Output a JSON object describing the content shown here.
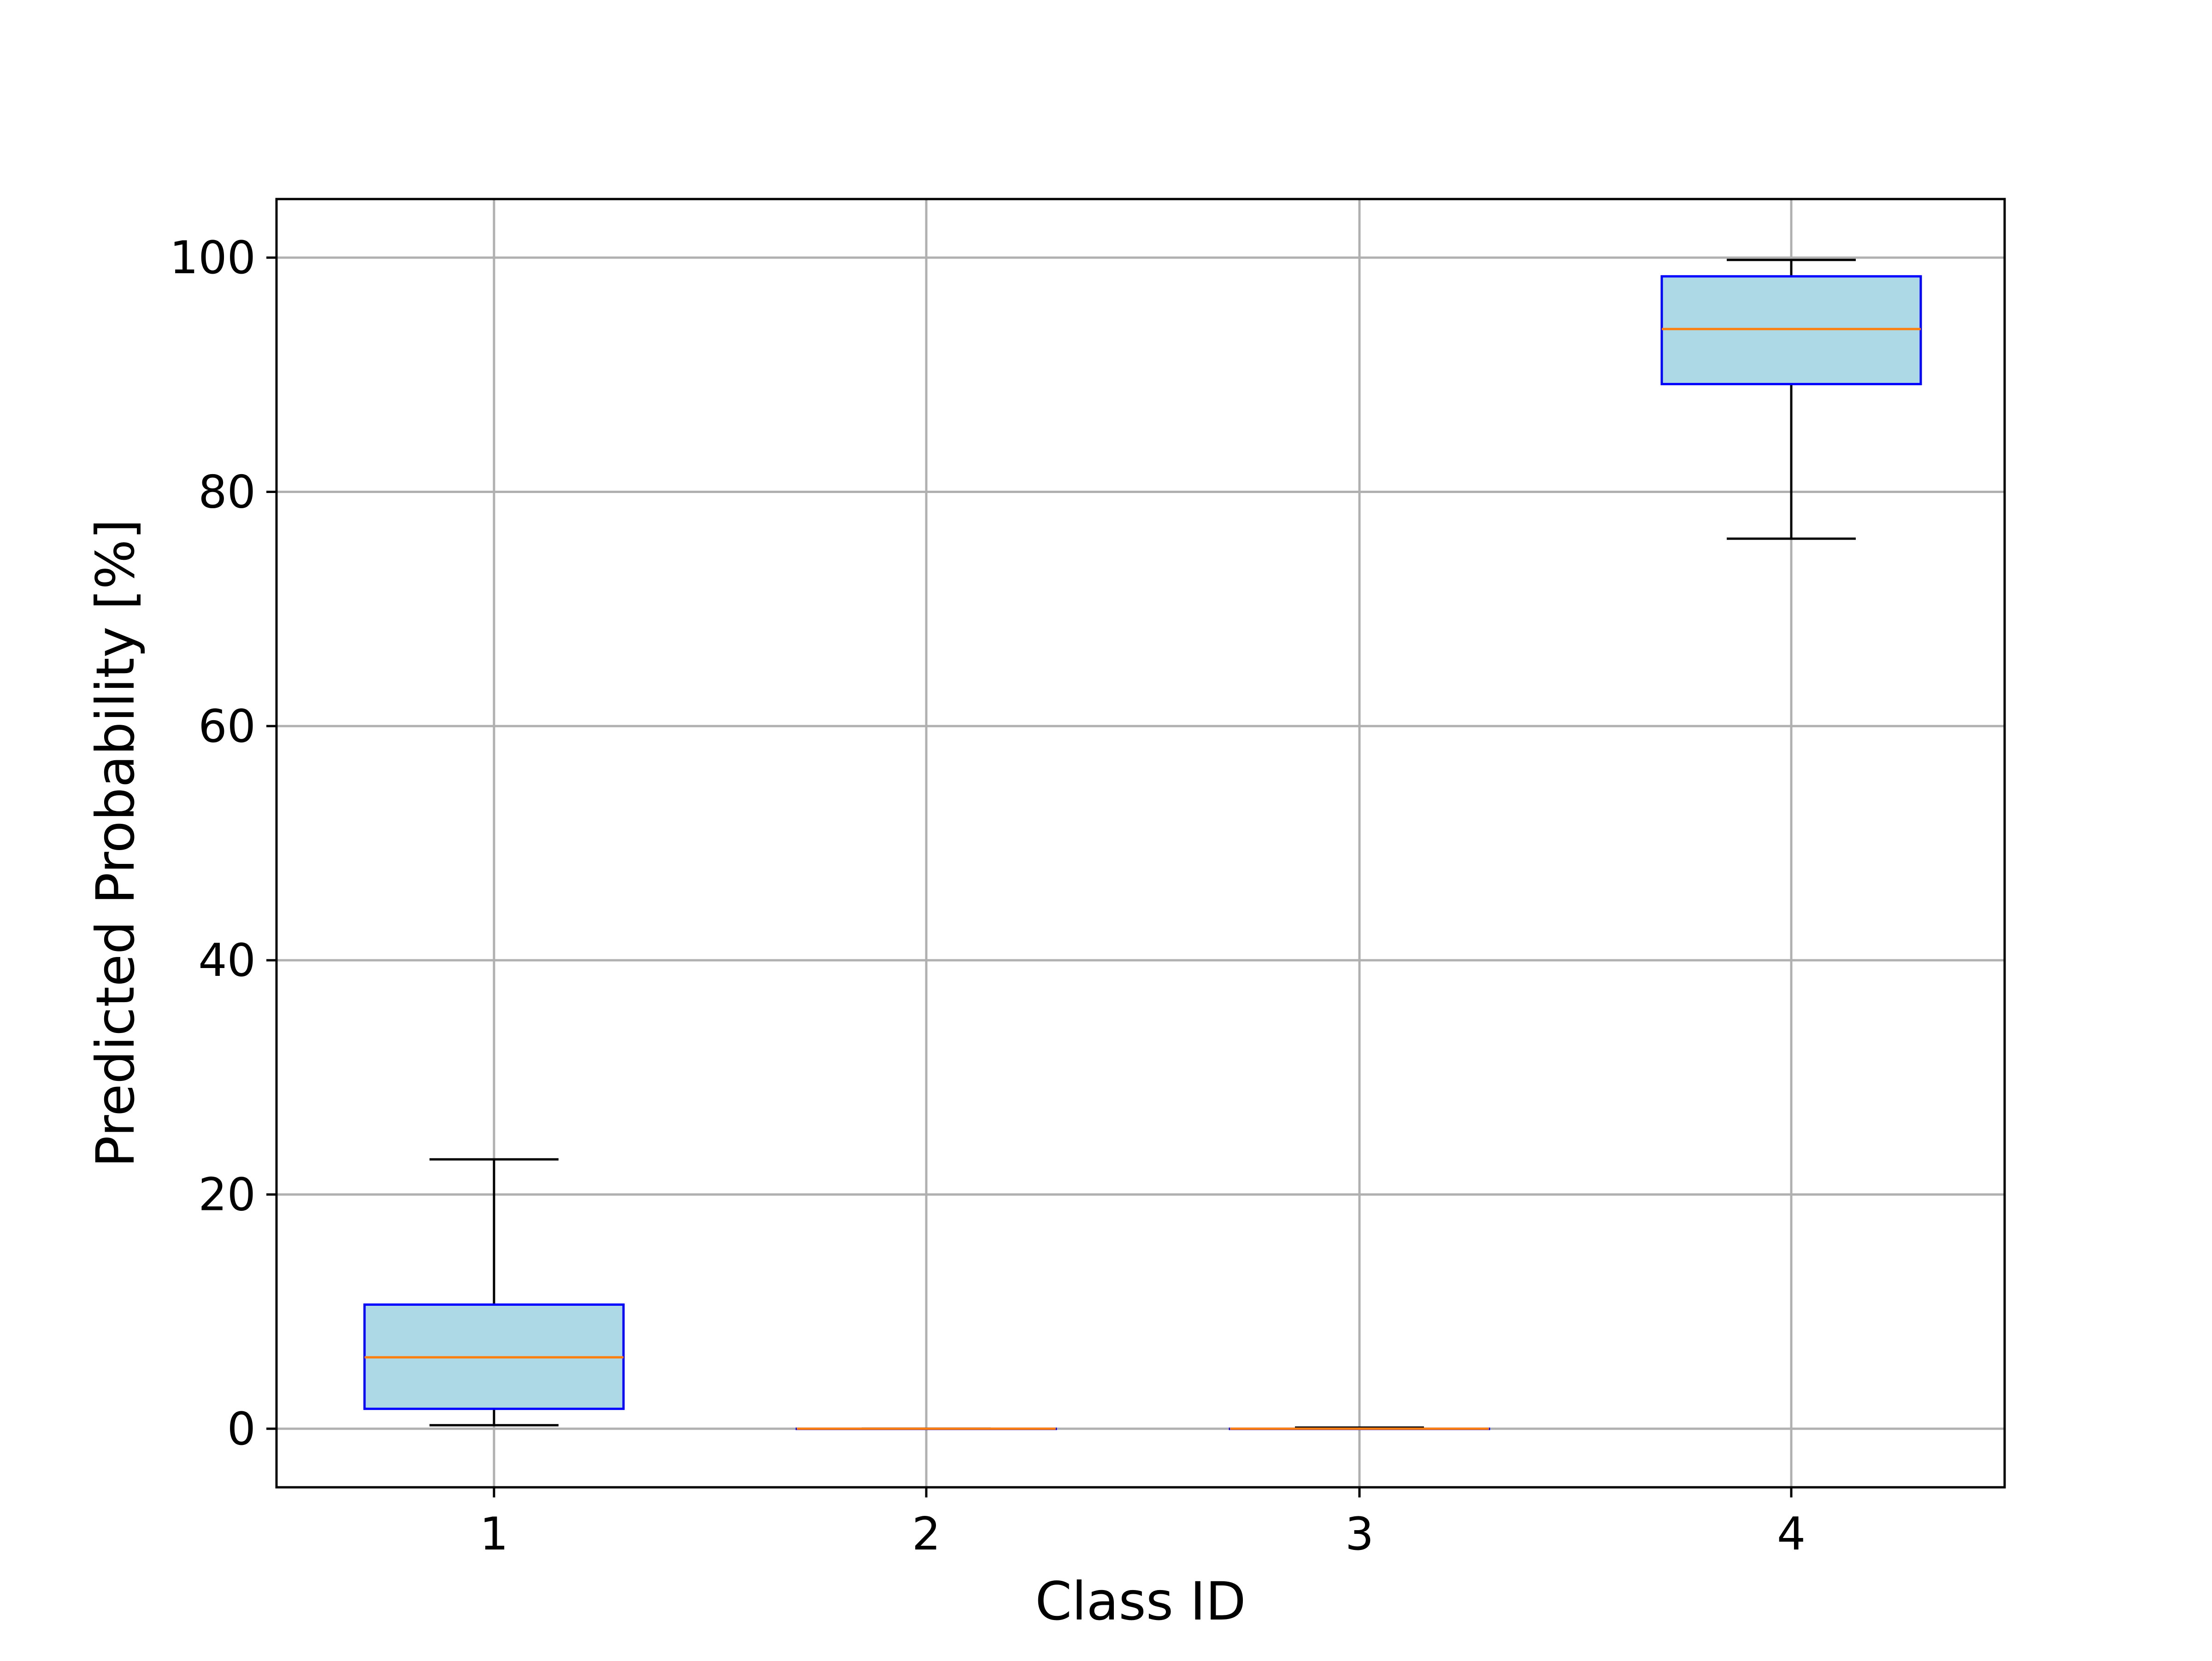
{
  "chart_data": {
    "type": "box",
    "title": "",
    "xlabel": "Class ID",
    "ylabel": "Predicted Probability [%]",
    "categories": [
      "1",
      "2",
      "3",
      "4"
    ],
    "ylim": [
      -5,
      105
    ],
    "yticks": [
      0,
      20,
      40,
      60,
      80,
      100
    ],
    "grid": true,
    "boxes": [
      {
        "category": "1",
        "whisker_low": 0.3,
        "q1": 1.7,
        "median": 6.1,
        "q3": 10.6,
        "whisker_high": 23.0
      },
      {
        "category": "2",
        "whisker_low": 0.0,
        "q1": 0.0,
        "median": 0.0,
        "q3": 0.0,
        "whisker_high": 0.0
      },
      {
        "category": "3",
        "whisker_low": 0.0,
        "q1": 0.0,
        "median": 0.0,
        "q3": 0.0,
        "whisker_high": 0.1
      },
      {
        "category": "4",
        "whisker_low": 76.0,
        "q1": 89.2,
        "median": 93.9,
        "q3": 98.4,
        "whisker_high": 99.8
      }
    ],
    "colors": {
      "box_fill": "#add8e6",
      "box_edge": "#0000ff",
      "median": "#ff7f0e",
      "whisker": "#000000",
      "grid": "#b0b0b0"
    }
  }
}
